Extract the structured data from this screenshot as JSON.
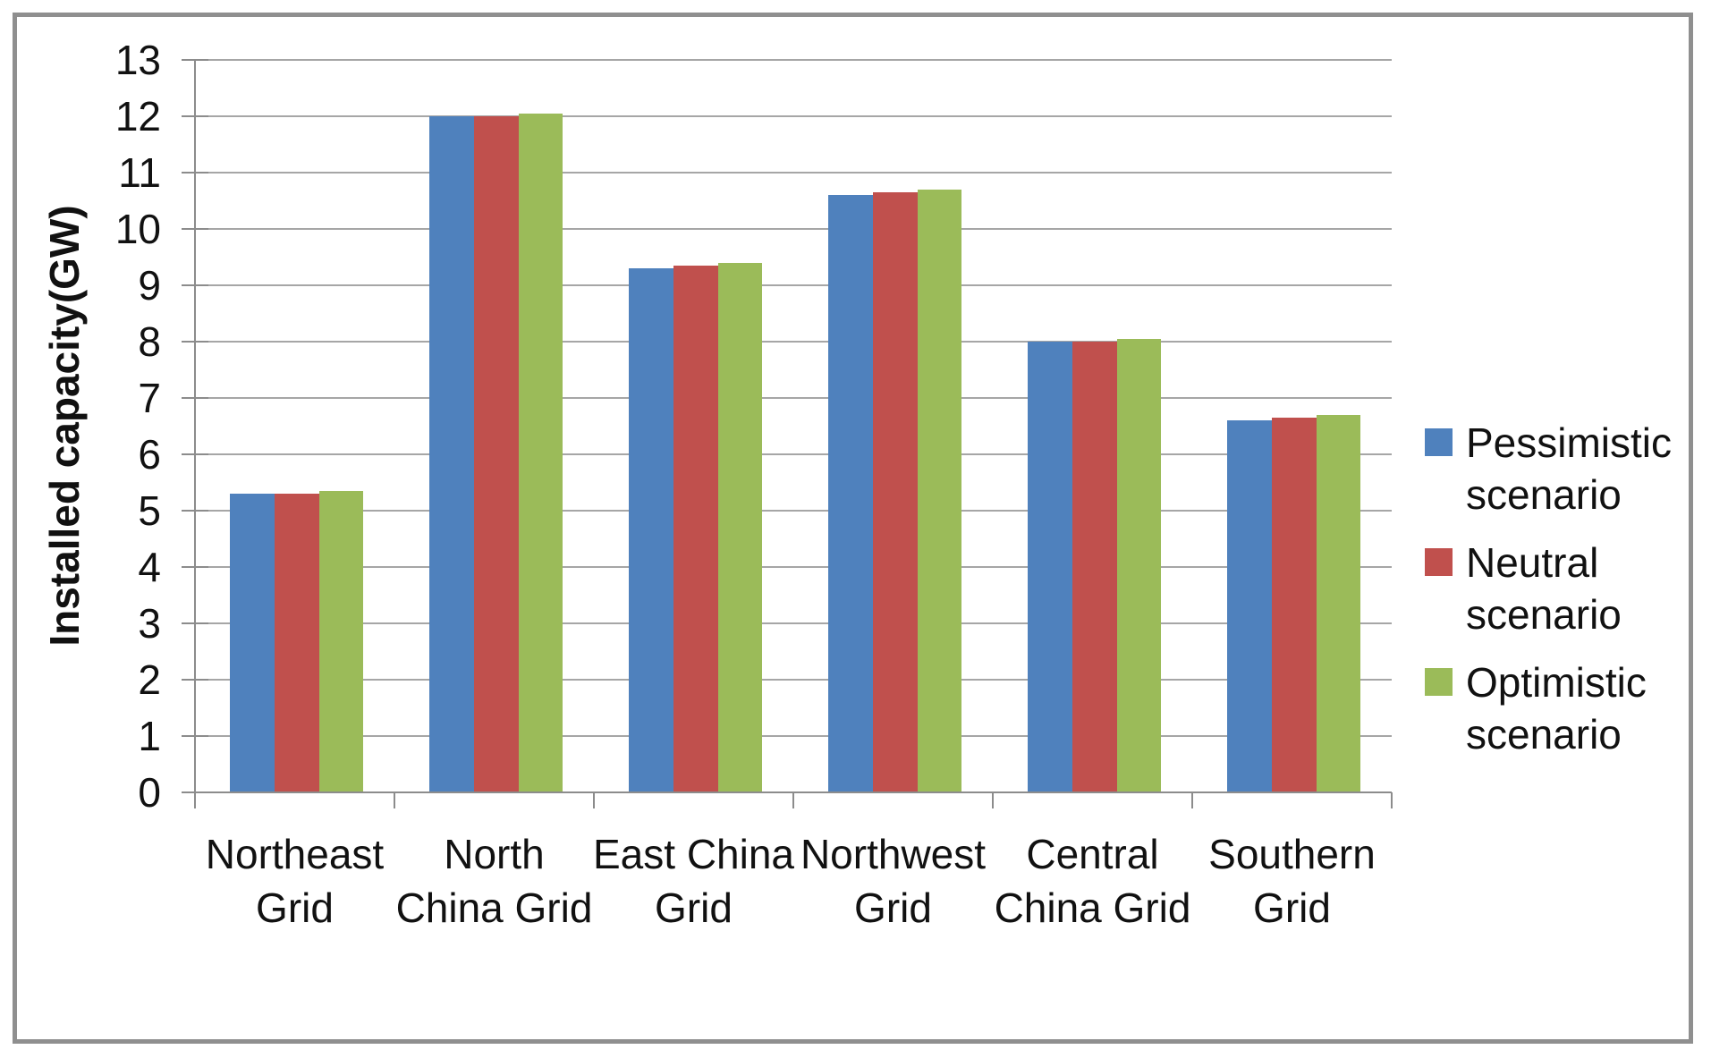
{
  "chart_data": {
    "type": "bar",
    "title": "",
    "categories": [
      "Northeast Grid",
      "North China Grid",
      "East China Grid",
      "Northwest Grid",
      "Central China Grid",
      "Southern Grid"
    ],
    "category_label_lines": [
      [
        "Northeast",
        "Grid"
      ],
      [
        "North",
        "China Grid"
      ],
      [
        "East China",
        "Grid"
      ],
      [
        "Northwest",
        "Grid"
      ],
      [
        "Central",
        "China Grid"
      ],
      [
        "Southern",
        "Grid"
      ]
    ],
    "series": [
      {
        "name": "Pessimistic scenario",
        "label_lines": [
          "Pessimistic",
          "scenario"
        ],
        "color": "#4F81BD",
        "values": [
          5.3,
          12.0,
          9.3,
          10.6,
          8.0,
          6.6
        ]
      },
      {
        "name": "Neutral scenario",
        "label_lines": [
          "Neutral",
          "scenario"
        ],
        "color": "#C0504D",
        "values": [
          5.3,
          12.0,
          9.35,
          10.65,
          8.0,
          6.65
        ]
      },
      {
        "name": "Optimistic scenario",
        "label_lines": [
          "Optimistic",
          "scenario"
        ],
        "color": "#9BBB59",
        "values": [
          5.35,
          12.05,
          9.4,
          10.7,
          8.05,
          6.7
        ]
      }
    ],
    "xlabel": "",
    "ylabel": "Installed capacity(GW)",
    "ylim": [
      0,
      13
    ],
    "ytick_step": 1,
    "y_tick_labels": [
      "0",
      "1",
      "2",
      "3",
      "4",
      "5",
      "6",
      "7",
      "8",
      "9",
      "10",
      "11",
      "12",
      "13"
    ],
    "grid": true,
    "legend_position": "right"
  },
  "colors": {
    "series_pessimistic": "#4F81BD",
    "series_neutral": "#C0504D",
    "series_optimistic": "#9BBB59",
    "gridline": "#A6A6A6",
    "axis": "#8C8C8C",
    "frame_border": "#8F8F8F",
    "text": "#111111",
    "background": "#FFFFFF"
  }
}
